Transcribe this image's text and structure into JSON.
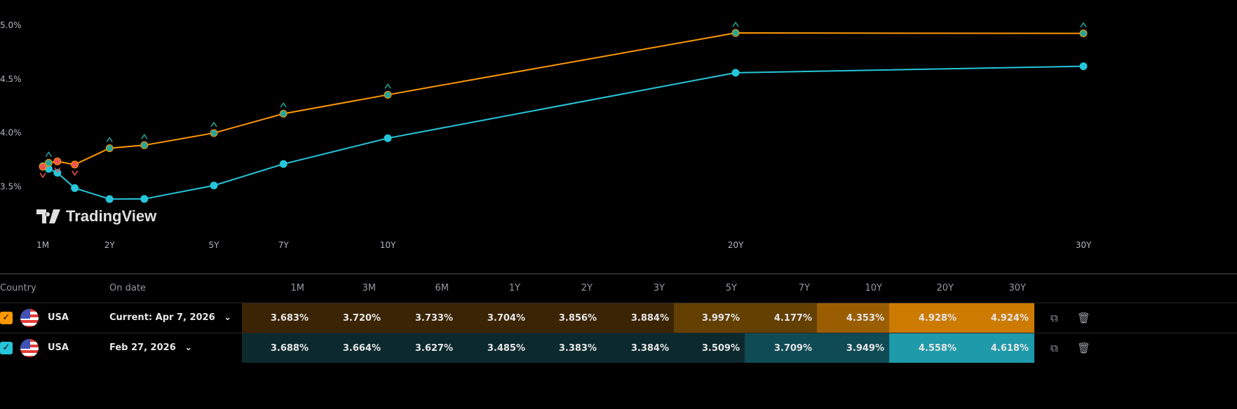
{
  "chart_data": {
    "type": "line",
    "x_tick_labels": [
      "1M",
      "2Y",
      "5Y",
      "7Y",
      "10Y",
      "20Y",
      "30Y"
    ],
    "x_tick_years": [
      0.0833,
      2,
      5,
      7,
      10,
      20,
      30
    ],
    "maturities": [
      "1M",
      "3M",
      "6M",
      "1Y",
      "2Y",
      "3Y",
      "5Y",
      "7Y",
      "10Y",
      "20Y",
      "30Y"
    ],
    "maturity_years": [
      0.0833,
      0.25,
      0.5,
      1,
      2,
      3,
      5,
      7,
      10,
      20,
      30
    ],
    "y_tick_labels": [
      "3.5%",
      "4.0%",
      "4.5%",
      "5.0%"
    ],
    "y_ticks": [
      3.5,
      4.0,
      4.5,
      5.0
    ],
    "ylim": [
      3.07,
      5.07
    ],
    "grid": false,
    "series": [
      {
        "color": "#ff9800",
        "values": [
          3.683,
          3.72,
          3.733,
          3.704,
          3.856,
          3.884,
          3.997,
          4.177,
          4.353,
          4.928,
          4.924
        ],
        "change_markers": [
          "down",
          "up",
          "down",
          "down",
          "up",
          "up",
          "up",
          "up",
          "up",
          "up",
          "up"
        ]
      },
      {
        "color": "#26c6da",
        "values": [
          3.688,
          3.664,
          3.627,
          3.485,
          3.383,
          3.384,
          3.509,
          3.709,
          3.949,
          4.558,
          4.618
        ]
      }
    ],
    "marker_colors": {
      "up": "#26a69a",
      "down": "#ef5350"
    }
  },
  "watermark": "TradingView",
  "table": {
    "headers": {
      "country": "Country",
      "on_date": "On date",
      "maturities": [
        "1M",
        "3M",
        "6M",
        "1Y",
        "2Y",
        "3Y",
        "5Y",
        "7Y",
        "10Y",
        "20Y",
        "30Y"
      ]
    },
    "rows": [
      {
        "checked": true,
        "check_color": "#ff9800",
        "country": "USA",
        "date": "Current: Apr 7, 2026",
        "values": [
          "3.683%",
          "3.720%",
          "3.733%",
          "3.704%",
          "3.856%",
          "3.884%",
          "3.997%",
          "4.177%",
          "4.353%",
          "4.928%",
          "4.924%"
        ],
        "cell_colors": [
          "#3a2404",
          "#3a2404",
          "#3a2404",
          "#3a2404",
          "#3a2404",
          "#3a2404",
          "#633f02",
          "#633f02",
          "#9a5d00",
          "#cc7a00",
          "#cc7a00"
        ]
      },
      {
        "checked": true,
        "check_color": "#26c6da",
        "country": "USA",
        "date": "Feb 27, 2026",
        "values": [
          "3.688%",
          "3.664%",
          "3.627%",
          "3.485%",
          "3.383%",
          "3.384%",
          "3.509%",
          "3.709%",
          "3.949%",
          "4.558%",
          "4.618%"
        ],
        "cell_colors": [
          "#0c2a2e",
          "#0c2a2e",
          "#0c2a2e",
          "#0c2a2e",
          "#0c2a2e",
          "#0c2a2e",
          "#0c2a2e",
          "#0f4b55",
          "#0f4b55",
          "#1f9aaa",
          "#1f9aaa"
        ]
      }
    ]
  }
}
